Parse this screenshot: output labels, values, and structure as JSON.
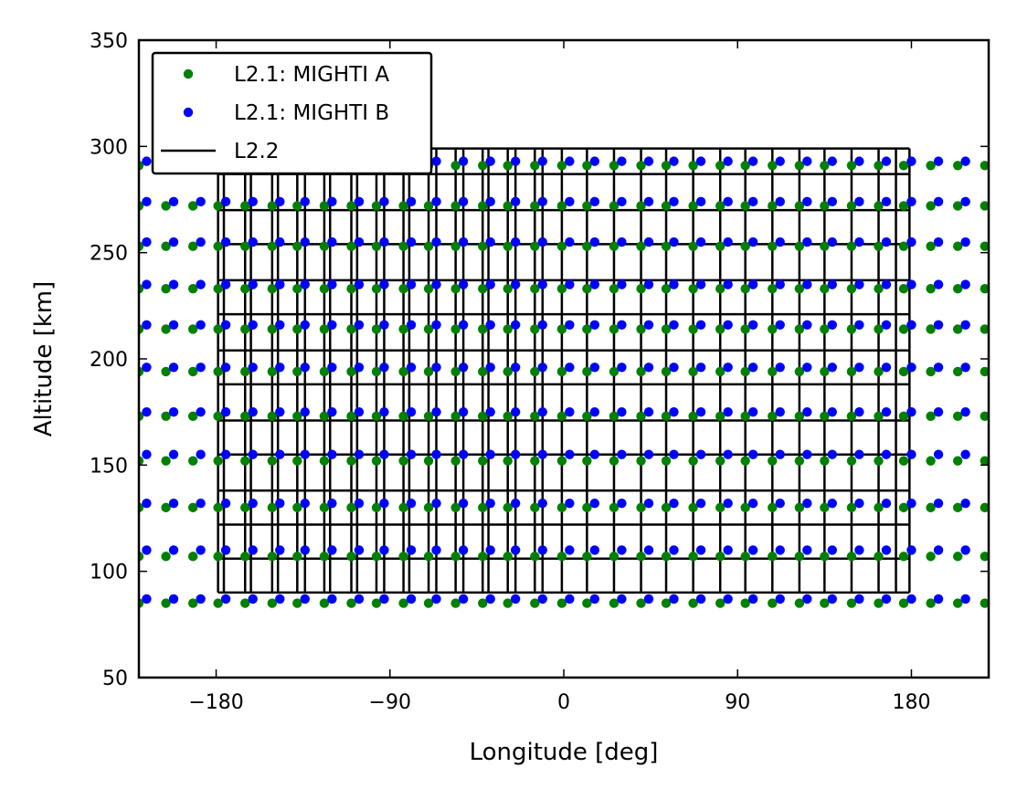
{
  "chart_data": {
    "type": "scatter",
    "xlabel": "Longitude [deg]",
    "ylabel": "Altitude [km]",
    "xlim": [
      -220,
      220
    ],
    "ylim": [
      50,
      350
    ],
    "xticks": [
      -180,
      -90,
      0,
      90,
      180
    ],
    "xtick_labels": [
      "−180",
      "−90",
      "0",
      "90",
      "180"
    ],
    "yticks": [
      50,
      100,
      150,
      200,
      250,
      300,
      350
    ],
    "ytick_labels": [
      "50",
      "100",
      "150",
      "200",
      "250",
      "300",
      "350"
    ],
    "grid": false,
    "legend_position": "top-left",
    "legend": [
      {
        "label": "L2.1: MIGHTI A",
        "marker": "dot",
        "color": "#008000"
      },
      {
        "label": "L2.1: MIGHTI B",
        "marker": "dot",
        "color": "#0000ff"
      },
      {
        "label": "L2.2",
        "marker": "line",
        "color": "#000000"
      }
    ],
    "series": [
      {
        "name": "L2.1: MIGHTI A",
        "color": "#008000",
        "profiles": {
          "x": [
            -220,
            -206,
            -192,
            -179,
            -165,
            -151,
            -138,
            -124,
            -110,
            -97,
            -83,
            -70,
            -56,
            -42,
            -29,
            -15,
            -1,
            12,
            26,
            40,
            53,
            67,
            81,
            94,
            108,
            122,
            135,
            149,
            163,
            176,
            190,
            204,
            218
          ],
          "altitudes": [
            85,
            107,
            130,
            152,
            173,
            194,
            214,
            233,
            253,
            272,
            291
          ]
        }
      },
      {
        "name": "L2.1: MIGHTI B",
        "color": "#0000ff",
        "profiles": {
          "x": [
            -216,
            -202,
            -188,
            -175,
            -161,
            -147,
            -134,
            -120,
            -106,
            -93,
            -79,
            -66,
            -52,
            -38,
            -25,
            -11,
            3,
            16,
            30,
            44,
            57,
            71,
            85,
            98,
            112,
            126,
            139,
            153,
            167,
            180,
            194,
            208,
            222
          ],
          "altitudes": [
            87,
            110,
            132,
            155,
            175,
            196,
            216,
            235,
            255,
            274,
            293
          ]
        }
      },
      {
        "name": "L2.2",
        "color": "#000000",
        "grid_x": [
          -179,
          -165,
          -151,
          -138,
          -124,
          -110,
          -97,
          -83,
          -70,
          -56,
          -42,
          -29,
          -15,
          -1,
          12,
          26,
          40,
          53,
          67,
          81,
          94,
          108,
          122,
          135,
          149,
          163,
          172,
          179
        ],
        "grid_y": [
          90,
          106,
          122,
          138,
          155,
          171,
          188,
          204,
          221,
          237,
          254,
          270,
          287,
          299
        ],
        "long_x": [
          -176,
          -162,
          -148,
          -134,
          -121,
          -107,
          -93,
          -80,
          -66,
          -52,
          -39,
          -25,
          -11
        ],
        "long_top": 299
      }
    ]
  }
}
